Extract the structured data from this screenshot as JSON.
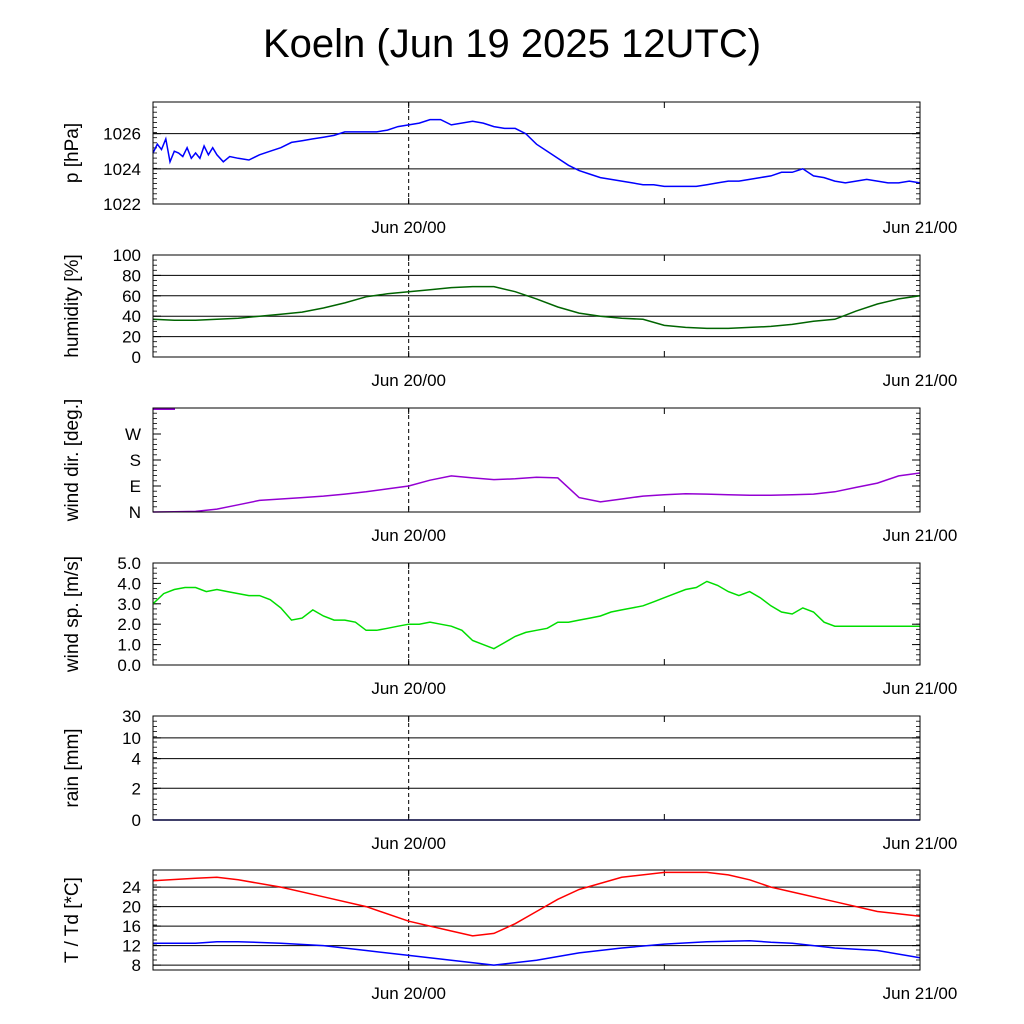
{
  "title": "Koeln (Jun 19 2025 12UTC)",
  "x_ticks": [
    "Jun 20/00",
    "Jun 21/00"
  ],
  "chart_data": [
    {
      "type": "line",
      "id": "pressure",
      "ylabel": "p [hPa]",
      "ylim": [
        1022,
        1027.8
      ],
      "yticks": [
        1022,
        1024,
        1026
      ],
      "ytick_labels": [
        "1022",
        "1024",
        "1026"
      ],
      "grid": true,
      "x_range_hours": [
        0,
        36
      ],
      "series": [
        {
          "color": "#0000ff",
          "x": [
            0,
            0.2,
            0.4,
            0.6,
            0.8,
            1.0,
            1.2,
            1.4,
            1.6,
            1.8,
            2.0,
            2.2,
            2.4,
            2.6,
            2.8,
            3.0,
            3.3,
            3.6,
            4.0,
            4.5,
            5,
            5.5,
            6,
            6.5,
            7,
            7.5,
            8,
            8.5,
            9,
            9.5,
            10,
            10.5,
            11,
            11.5,
            12,
            12.5,
            13,
            13.5,
            14,
            15,
            15.5,
            16,
            16.5,
            17,
            17.5,
            18,
            18.5,
            19,
            19.5,
            20,
            20.5,
            21,
            21.5,
            22,
            22.5,
            23,
            23.5,
            24,
            24.5,
            25,
            25.5,
            26,
            26.5,
            27,
            27.5,
            28,
            28.5,
            29,
            29.5,
            30,
            30.5,
            31,
            31.5,
            32,
            32.5,
            33,
            33.5,
            34,
            34.5,
            35,
            35.5,
            36
          ],
          "values": [
            1024.9,
            1025.4,
            1025.1,
            1025.7,
            1024.4,
            1025.0,
            1024.9,
            1024.7,
            1025.2,
            1024.6,
            1024.9,
            1024.6,
            1025.3,
            1024.8,
            1025.2,
            1024.8,
            1024.4,
            1024.7,
            1024.6,
            1024.5,
            1024.8,
            1025.0,
            1025.2,
            1025.5,
            1025.6,
            1025.7,
            1025.8,
            1025.9,
            1026.1,
            1026.1,
            1026.1,
            1026.1,
            1026.2,
            1026.4,
            1026.5,
            1026.6,
            1026.8,
            1026.8,
            1026.5,
            1026.7,
            1026.6,
            1026.4,
            1026.3,
            1026.3,
            1026.0,
            1025.4,
            1025.0,
            1024.6,
            1024.2,
            1023.9,
            1023.7,
            1023.5,
            1023.4,
            1023.3,
            1023.2,
            1023.1,
            1023.1,
            1023.0,
            1023.0,
            1023.0,
            1023.0,
            1023.1,
            1023.2,
            1023.3,
            1023.3,
            1023.4,
            1023.5,
            1023.6,
            1023.8,
            1023.8,
            1024.0,
            1023.6,
            1023.5,
            1023.3,
            1023.2,
            1023.3,
            1023.4,
            1023.3,
            1023.2,
            1023.2,
            1023.3,
            1023.2
          ]
        }
      ]
    },
    {
      "type": "line",
      "id": "humidity",
      "ylabel": "humidity [%]",
      "ylim": [
        0,
        100
      ],
      "yticks": [
        0,
        20,
        40,
        60,
        80,
        100
      ],
      "ytick_labels": [
        "0",
        "20",
        "40",
        "60",
        "80",
        "100"
      ],
      "grid": true,
      "x_range_hours": [
        0,
        36
      ],
      "series": [
        {
          "color": "#006400",
          "x": [
            0,
            1,
            2,
            3,
            4,
            5,
            6,
            7,
            8,
            9,
            10,
            11,
            12,
            13,
            14,
            15,
            16,
            17,
            18,
            19,
            20,
            21,
            22,
            23,
            24,
            25,
            26,
            27,
            28,
            29,
            30,
            31,
            32,
            33,
            34,
            35,
            36
          ],
          "values": [
            37,
            36,
            36,
            37,
            38,
            40,
            42,
            44,
            48,
            53,
            59,
            62,
            64,
            66,
            68,
            69,
            69,
            64,
            57,
            49,
            43,
            40,
            38,
            37,
            31,
            29,
            28,
            28,
            29,
            30,
            32,
            35,
            37,
            45,
            52,
            57,
            60
          ]
        }
      ]
    },
    {
      "type": "line",
      "id": "wind_dir",
      "ylabel": "wind dir. [deg.]",
      "ylim": [
        0,
        360
      ],
      "yticks": [
        0,
        90,
        180,
        270
      ],
      "ytick_labels": [
        "N",
        "E",
        "S",
        "W"
      ],
      "grid": false,
      "x_range_hours": [
        0,
        36
      ],
      "series": [
        {
          "color": "#9400d3",
          "x": [
            0,
            1,
            2,
            3,
            4,
            5,
            6,
            7,
            8,
            9,
            10,
            11,
            12,
            13,
            14,
            15,
            16,
            17,
            18,
            19,
            20,
            21,
            22,
            23,
            24,
            25,
            26,
            27,
            28,
            29,
            30,
            31,
            32,
            33,
            34,
            35,
            36
          ],
          "values": [
            0,
            1,
            2,
            10,
            25,
            40,
            45,
            50,
            55,
            62,
            70,
            80,
            90,
            110,
            125,
            118,
            112,
            115,
            120,
            118,
            50,
            35,
            45,
            55,
            60,
            63,
            62,
            60,
            58,
            58,
            60,
            62,
            70,
            85,
            100,
            125,
            135
          ]
        }
      ]
    },
    {
      "type": "line",
      "id": "wind_speed",
      "ylabel": "wind sp. [m/s]",
      "ylim": [
        0,
        5
      ],
      "yticks": [
        0,
        1,
        2,
        3,
        4,
        5
      ],
      "ytick_labels": [
        "0.0",
        "1.0",
        "2.0",
        "3.0",
        "4.0",
        "5.0"
      ],
      "grid": false,
      "x_range_hours": [
        0,
        36
      ],
      "series": [
        {
          "color": "#00dd00",
          "x": [
            0,
            0.5,
            1,
            1.5,
            2,
            2.5,
            3,
            3.5,
            4,
            4.5,
            5,
            5.5,
            6,
            6.5,
            7,
            7.5,
            8,
            8.5,
            9,
            9.5,
            10,
            10.5,
            11,
            11.5,
            12,
            12.5,
            13,
            13.5,
            14,
            14.5,
            15,
            15.5,
            16,
            16.5,
            17,
            17.5,
            18,
            18.5,
            19,
            19.5,
            20,
            20.5,
            21,
            21.5,
            22,
            22.5,
            23,
            23.5,
            24,
            24.5,
            25,
            25.5,
            26,
            26.5,
            27,
            27.5,
            28,
            28.5,
            29,
            29.5,
            30,
            30.5,
            31,
            31.5,
            32,
            32.5,
            33,
            33.5,
            34,
            34.5,
            35,
            35.5,
            36
          ],
          "values": [
            3.0,
            3.5,
            3.7,
            3.8,
            3.8,
            3.6,
            3.7,
            3.6,
            3.5,
            3.4,
            3.4,
            3.2,
            2.8,
            2.2,
            2.3,
            2.7,
            2.4,
            2.2,
            2.2,
            2.1,
            1.7,
            1.7,
            1.8,
            1.9,
            2.0,
            2.0,
            2.1,
            2.0,
            1.9,
            1.7,
            1.2,
            1.0,
            0.8,
            1.1,
            1.4,
            1.6,
            1.7,
            1.8,
            2.1,
            2.1,
            2.2,
            2.3,
            2.4,
            2.6,
            2.7,
            2.8,
            2.9,
            3.1,
            3.3,
            3.5,
            3.7,
            3.8,
            4.1,
            3.9,
            3.6,
            3.4,
            3.6,
            3.3,
            2.9,
            2.6,
            2.5,
            2.8,
            2.6,
            2.1,
            1.9,
            1.9,
            1.9,
            1.9,
            1.9,
            1.9,
            1.9,
            1.9,
            1.9
          ]
        }
      ]
    },
    {
      "type": "line",
      "id": "rain",
      "ylabel": "rain [mm]",
      "ylim": [
        0,
        30
      ],
      "yticks": [
        0,
        2,
        4,
        10,
        30
      ],
      "ytick_labels": [
        "0",
        "2",
        "4",
        "10",
        "30"
      ],
      "grid": true,
      "x_range_hours": [
        0,
        36
      ],
      "series": [
        {
          "color": "#0000aa",
          "x": [
            0,
            36
          ],
          "values": [
            0,
            0
          ]
        }
      ]
    },
    {
      "type": "line",
      "id": "temperature",
      "ylabel": "T / Td [*C]",
      "ylim": [
        7,
        27.5
      ],
      "yticks": [
        8,
        12,
        16,
        20,
        24
      ],
      "ytick_labels": [
        "8",
        "12",
        "16",
        "20",
        "24"
      ],
      "grid": true,
      "x_range_hours": [
        0,
        36
      ],
      "series": [
        {
          "color": "#ff0000",
          "x": [
            0,
            2,
            3,
            4,
            6,
            8,
            10,
            12,
            14,
            15,
            16,
            17,
            18,
            19,
            20,
            22,
            24,
            26,
            27,
            28,
            29,
            30,
            32,
            34,
            36
          ],
          "values": [
            25.3,
            25.8,
            26.0,
            25.5,
            24.0,
            22.0,
            20.0,
            17.0,
            15.0,
            14.0,
            14.5,
            16.5,
            19.0,
            21.5,
            23.5,
            26.0,
            27.0,
            27.0,
            26.5,
            25.5,
            24.0,
            23.0,
            21.0,
            19.0,
            18.0
          ]
        },
        {
          "color": "#0000ff",
          "x": [
            0,
            2,
            3,
            4,
            6,
            8,
            10,
            12,
            14,
            16,
            18,
            20,
            22,
            24,
            26,
            28,
            29,
            30,
            32,
            34,
            36
          ],
          "values": [
            12.5,
            12.5,
            12.8,
            12.8,
            12.5,
            12.0,
            11.0,
            10.0,
            9.0,
            8.0,
            9.0,
            10.5,
            11.5,
            12.3,
            12.8,
            13.0,
            12.7,
            12.5,
            11.5,
            11.0,
            9.5
          ]
        }
      ]
    }
  ]
}
